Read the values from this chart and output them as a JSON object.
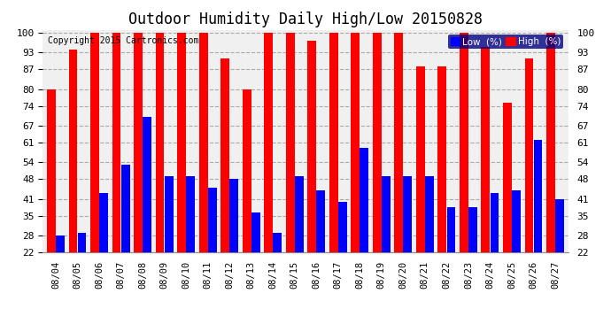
{
  "title": "Outdoor Humidity Daily High/Low 20150828",
  "copyright": "Copyright 2015 Cartronics.com",
  "dates": [
    "08/04",
    "08/05",
    "08/06",
    "08/07",
    "08/08",
    "08/09",
    "08/10",
    "08/11",
    "08/12",
    "08/13",
    "08/14",
    "08/15",
    "08/16",
    "08/17",
    "08/18",
    "08/19",
    "08/20",
    "08/21",
    "08/22",
    "08/23",
    "08/24",
    "08/25",
    "08/26",
    "08/27"
  ],
  "high": [
    80,
    94,
    100,
    100,
    100,
    100,
    100,
    100,
    91,
    80,
    100,
    100,
    97,
    100,
    100,
    100,
    100,
    88,
    88,
    100,
    95,
    75,
    91,
    100
  ],
  "low": [
    28,
    29,
    43,
    53,
    70,
    49,
    49,
    45,
    48,
    36,
    29,
    49,
    44,
    40,
    59,
    49,
    49,
    49,
    38,
    38,
    43,
    44,
    62,
    41
  ],
  "ymin": 22,
  "ymax": 101,
  "yticks": [
    22,
    28,
    35,
    41,
    48,
    54,
    61,
    67,
    74,
    80,
    87,
    93,
    100
  ],
  "high_color": "#ff0000",
  "low_color": "#0000ff",
  "bg_color": "#ffffff",
  "plot_bg_color": "#f0f0f0",
  "grid_color": "#aaaaaa",
  "title_fontsize": 12,
  "legend_label_low": "Low  (%)",
  "legend_label_high": "High  (%)",
  "legend_bg": "#000080",
  "bar_width": 0.4,
  "bar_gap": 0.01
}
